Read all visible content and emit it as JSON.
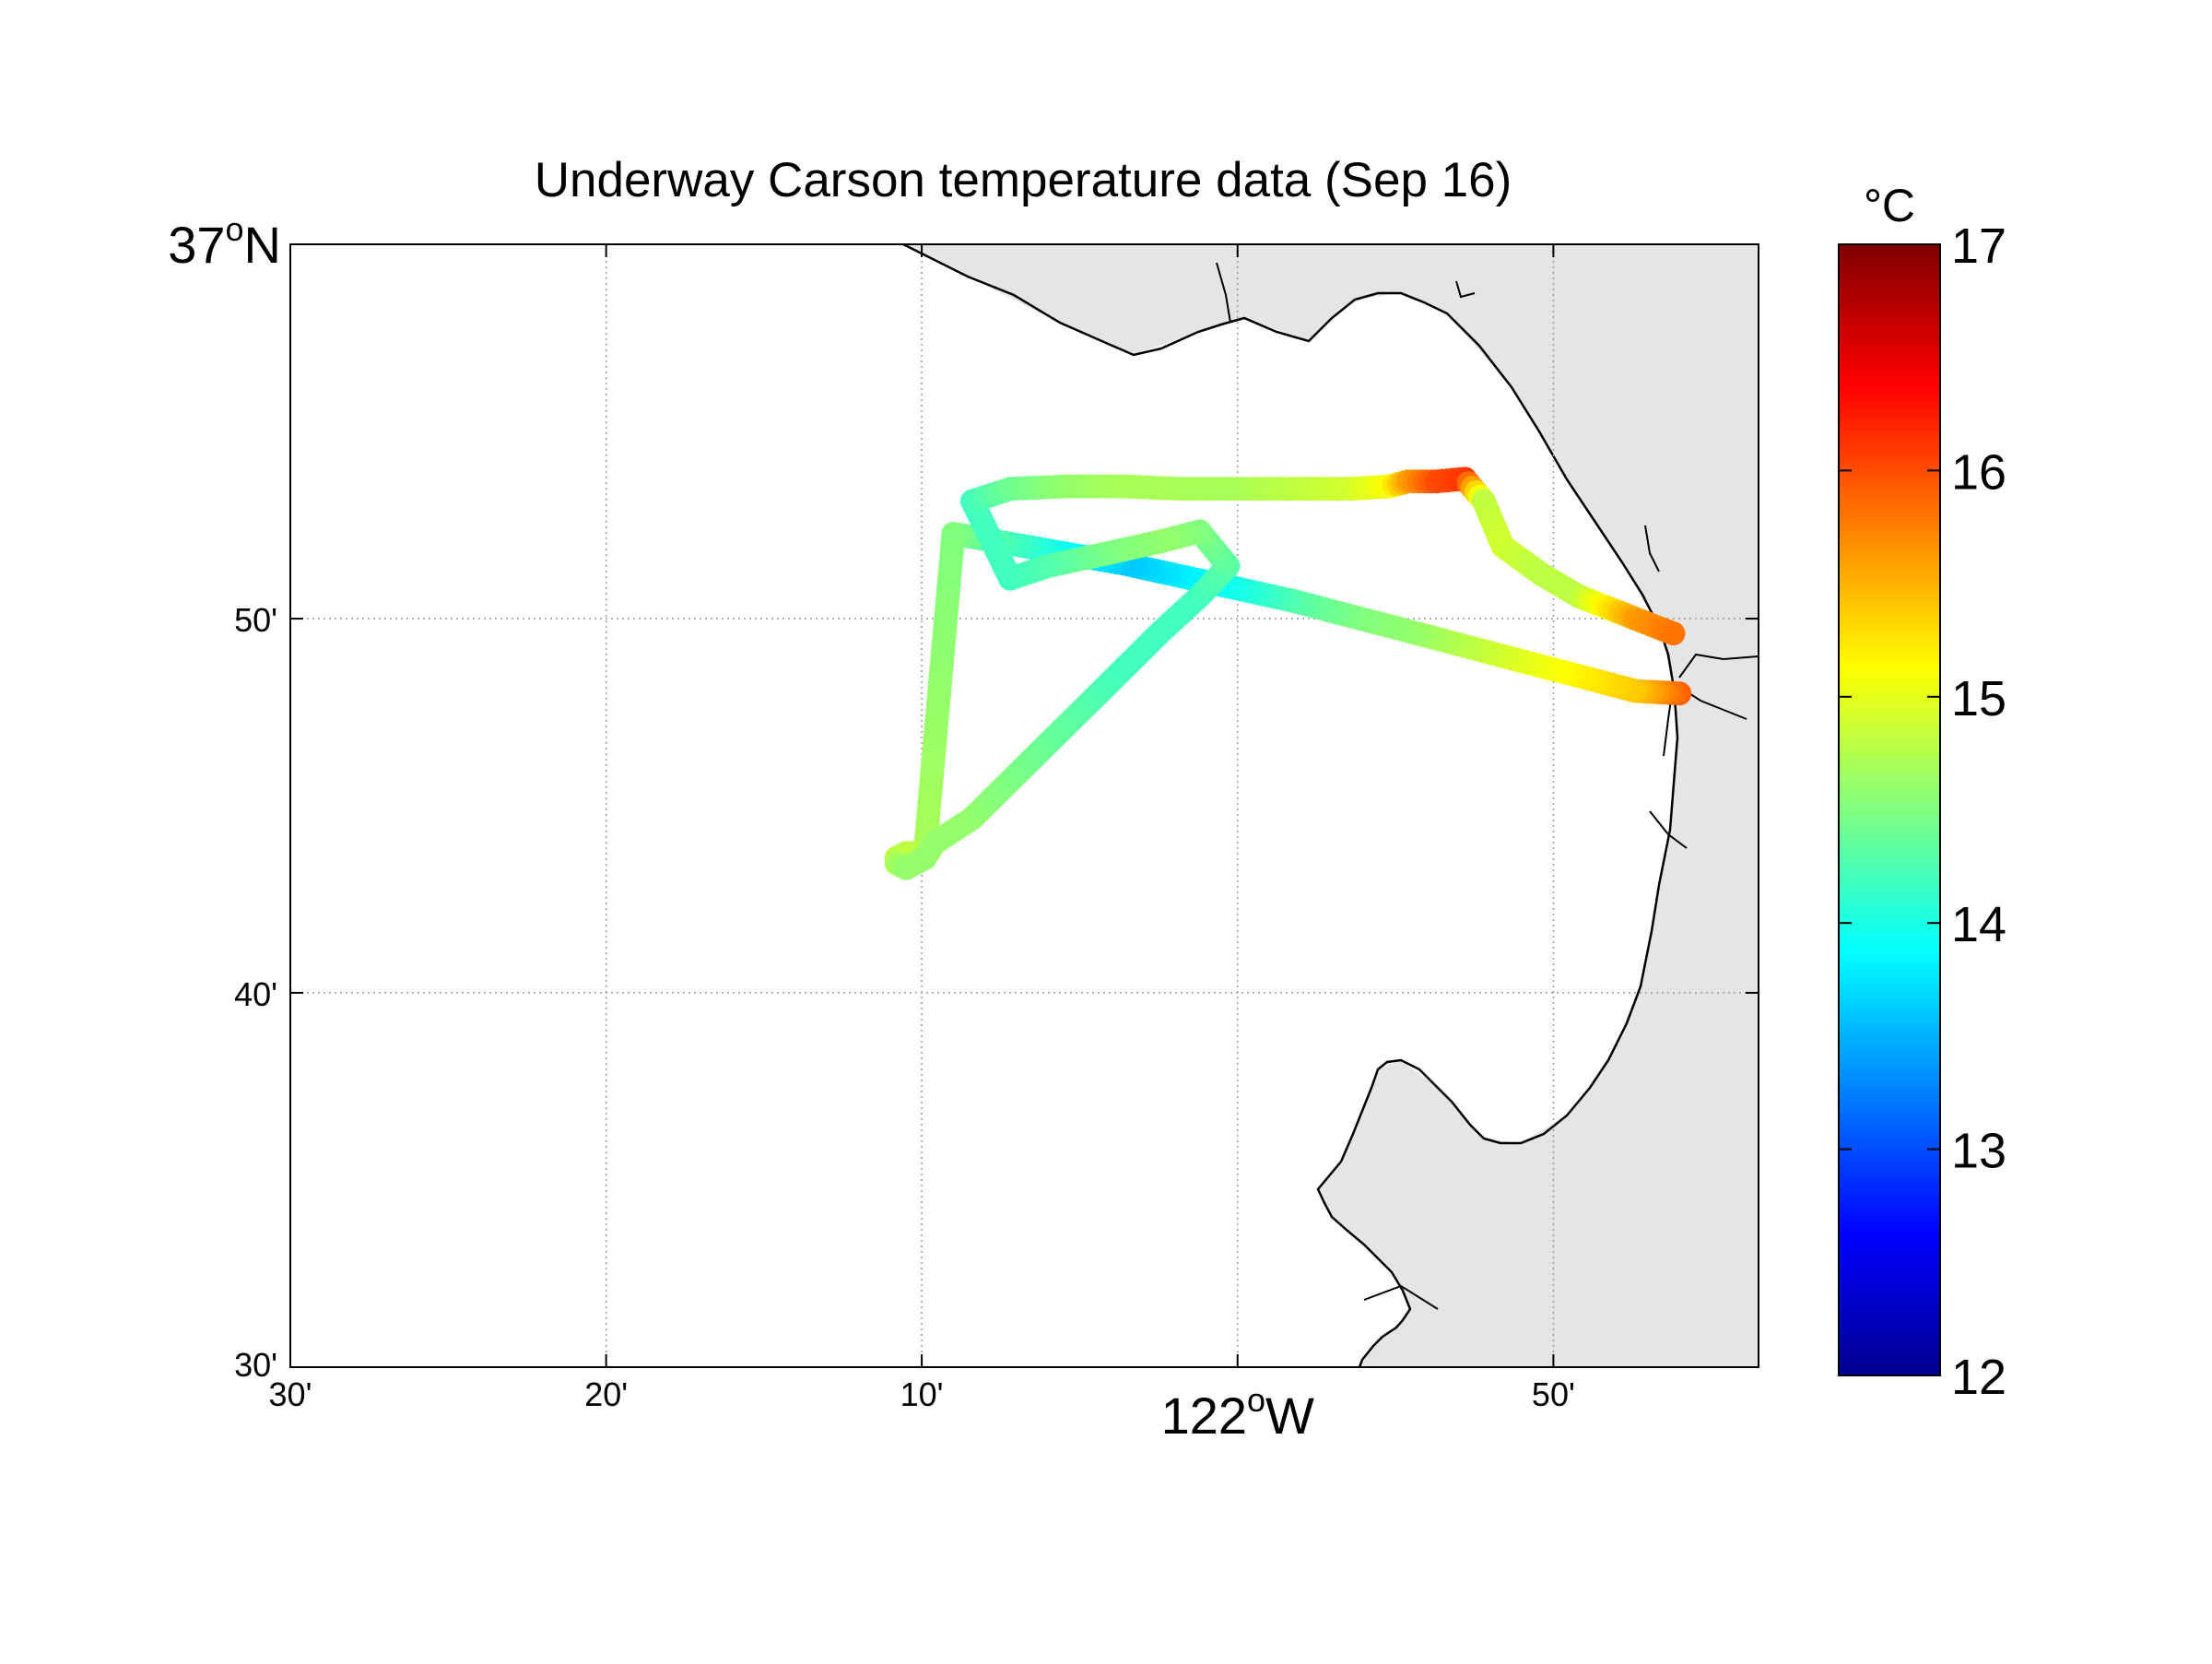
{
  "figure": {
    "title": "Underway Carson temperature data (Sep 16)",
    "colorbar_unit": "°C"
  },
  "colors": {
    "land_fill": "#e5e5e5",
    "coastline": "#000000",
    "grid": "#9a9a9a",
    "jet_colormap": [
      "#00008f",
      "#0000ff",
      "#0080ff",
      "#00ffff",
      "#80ff80",
      "#ffff00",
      "#ff8000",
      "#ff0000",
      "#800000"
    ]
  },
  "chart_data": {
    "type": "scatter",
    "title": "Underway Carson temperature data (Sep 16)",
    "xlabel": "122°W",
    "ylabel": "",
    "xlim": [
      -122.5,
      -121.725
    ],
    "ylim": [
      36.5,
      37.0
    ],
    "grid": true,
    "colorbar": {
      "label": "°C",
      "range": [
        12,
        17
      ],
      "ticks": [
        "12",
        "13",
        "14",
        "15",
        "16",
        "17"
      ]
    },
    "x_ticks": [
      {
        "value": -122.5,
        "label": "30'"
      },
      {
        "value": -122.3333,
        "label": "20'"
      },
      {
        "value": -122.1667,
        "label": "10'"
      },
      {
        "value": -122.0,
        "label_main": "122",
        "label_sup": "o",
        "label_suffix": "W"
      },
      {
        "value": -121.8333,
        "label": "50'"
      }
    ],
    "y_ticks": [
      {
        "value": 37.0,
        "label_main": "37",
        "label_sup": "o",
        "label_suffix": "N"
      },
      {
        "value": 36.8333,
        "label": "50'"
      },
      {
        "value": 36.6667,
        "label": "40'"
      },
      {
        "value": 36.5,
        "label": "30'"
      }
    ],
    "series": [
      {
        "lon": [
          -121.7667,
          -121.79,
          -121.82,
          -121.85,
          -121.88,
          -121.91,
          -121.94,
          -121.97,
          -122.0,
          -122.03,
          -122.06,
          -122.09,
          -122.12,
          -122.15,
          -122.165,
          -122.175,
          -122.18,
          -122.18,
          -122.175,
          -122.165,
          -122.16,
          -122.14,
          -122.12,
          -122.1,
          -122.08,
          -122.06,
          -122.04,
          -122.02,
          -122.005,
          -122.02,
          -122.04,
          -122.07,
          -122.1,
          -122.12,
          -122.14,
          -122.12,
          -122.09,
          -122.06,
          -122.03,
          -122.0,
          -121.97,
          -121.94,
          -121.92,
          -121.91,
          -121.895,
          -121.88,
          -121.87,
          -121.86,
          -121.84,
          -121.82,
          -121.79,
          -121.77
        ],
        "lat": [
          36.8,
          36.8011,
          36.8078,
          36.8144,
          36.8211,
          36.8278,
          36.8344,
          36.8411,
          36.8467,
          36.8522,
          36.8578,
          36.8622,
          36.8667,
          36.8711,
          36.7289,
          36.7289,
          36.7267,
          36.7244,
          36.7222,
          36.7267,
          36.7333,
          36.7444,
          36.7611,
          36.7778,
          36.7944,
          36.8111,
          36.8278,
          36.8433,
          36.8567,
          36.8722,
          36.8678,
          36.8622,
          36.8567,
          36.8511,
          36.8856,
          36.8911,
          36.8922,
          36.8922,
          36.8911,
          36.8911,
          36.8911,
          36.8911,
          36.8922,
          36.8944,
          36.8944,
          36.8956,
          36.8856,
          36.8656,
          36.8533,
          36.8433,
          36.8333,
          36.8267
        ],
        "temp": [
          15.9,
          15.4,
          15.2,
          15.0,
          14.8,
          14.6,
          14.5,
          14.3,
          14.0,
          13.8,
          13.6,
          13.9,
          14.2,
          14.5,
          14.7,
          14.8,
          14.8,
          14.7,
          14.6,
          14.6,
          14.6,
          14.6,
          14.5,
          14.4,
          14.3,
          14.2,
          14.2,
          14.2,
          14.3,
          14.5,
          14.6,
          14.5,
          14.3,
          14.2,
          14.2,
          14.4,
          14.6,
          14.7,
          14.7,
          14.7,
          14.8,
          14.9,
          15.1,
          15.6,
          16.0,
          16.1,
          14.8,
          14.9,
          14.8,
          14.8,
          15.6,
          15.8
        ]
      }
    ]
  }
}
